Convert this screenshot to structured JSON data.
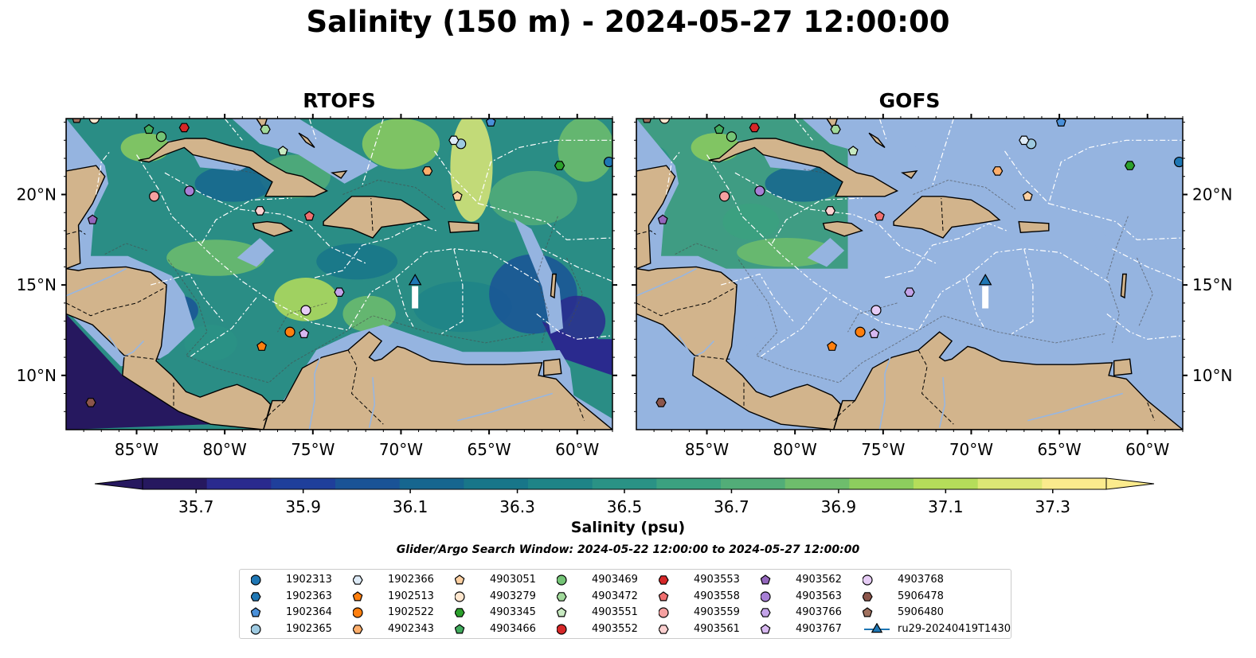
{
  "title": "Salinity (150 m) - 2024-05-27 12:00:00",
  "panels": [
    {
      "title": "RTOFS"
    },
    {
      "title": "GOFS"
    }
  ],
  "axes": {
    "lon_ticks": [
      "85°W",
      "80°W",
      "75°W",
      "70°W",
      "65°W",
      "60°W"
    ],
    "lat_ticks": [
      "20°N",
      "15°N",
      "10°N"
    ],
    "lon_range": [
      -89,
      -58
    ],
    "lat_range": [
      7,
      24.2
    ]
  },
  "colorbar": {
    "label": "Salinity (psu)",
    "ticks": [
      "35.7",
      "35.9",
      "36.1",
      "36.3",
      "36.5",
      "36.7",
      "36.9",
      "37.1",
      "37.3"
    ],
    "range": [
      35.6,
      37.4
    ],
    "colors": [
      "#26185f",
      "#2a2a8e",
      "#1f3f9b",
      "#1a5396",
      "#16668f",
      "#187689",
      "#1e8487",
      "#2a9285",
      "#3ba180",
      "#52ad78",
      "#6ebd6c",
      "#8dcd5e",
      "#b5dd5a",
      "#dde775",
      "#fbeb8d"
    ]
  },
  "window_text": "Glider/Argo Search Window: 2024-05-22 12:00:00 to 2024-05-27 12:00:00",
  "colors": {
    "land": "#d2b48c",
    "shelf": "#95b4e0",
    "ocean_rtofs": "#2a8d85",
    "ocean_gofs_nodata": "#95b4e0",
    "gofs_data_box": "#3f9c83"
  },
  "floats": [
    {
      "id": "1902313",
      "marker": "circle",
      "color": "#1f77b4",
      "lon": -58.2,
      "lat": 21.8
    },
    {
      "id": "1902363",
      "marker": "hexagon",
      "color": "#1f77b4",
      "lon": -89.5,
      "lat": 24.5
    },
    {
      "id": "1902364",
      "marker": "pentagon",
      "color": "#4a90d9",
      "lon": -64.9,
      "lat": 24.0
    },
    {
      "id": "1902365",
      "marker": "circle",
      "color": "#9ecae1",
      "lon": -66.6,
      "lat": 22.8
    },
    {
      "id": "1902366",
      "marker": "hexagon",
      "color": "#deebf7",
      "lon": -67.0,
      "lat": 23.0
    },
    {
      "id": "1902513",
      "marker": "pentagon",
      "color": "#ff7f0e",
      "lon": -77.9,
      "lat": 11.6
    },
    {
      "id": "1902522",
      "marker": "circle",
      "color": "#ff7f0e",
      "lon": -76.3,
      "lat": 12.4
    },
    {
      "id": "4902343",
      "marker": "hexagon",
      "color": "#fdae6b",
      "lon": -68.5,
      "lat": 21.3
    },
    {
      "id": "4903051",
      "marker": "pentagon",
      "color": "#fdd0a2",
      "lon": -66.8,
      "lat": 19.9
    },
    {
      "id": "4903279",
      "marker": "circle",
      "color": "#fee6ce",
      "lon": -87.4,
      "lat": 24.2
    },
    {
      "id": "4903345",
      "marker": "hexagon",
      "color": "#2ca02c",
      "lon": -61.0,
      "lat": 21.6
    },
    {
      "id": "4903466",
      "marker": "pentagon",
      "color": "#41ab5d",
      "lon": -84.3,
      "lat": 23.6
    },
    {
      "id": "4903469",
      "marker": "circle",
      "color": "#74c476",
      "lon": -83.6,
      "lat": 23.2
    },
    {
      "id": "4903472",
      "marker": "hexagon",
      "color": "#a1d99b",
      "lon": -77.7,
      "lat": 23.6
    },
    {
      "id": "4903551",
      "marker": "pentagon",
      "color": "#c7e9c0",
      "lon": -76.7,
      "lat": 22.4
    },
    {
      "id": "4903552",
      "marker": "circle",
      "color": "#d62728",
      "lon": -85.2,
      "lat": 24.5
    },
    {
      "id": "4903553",
      "marker": "hexagon",
      "color": "#d62728",
      "lon": -82.3,
      "lat": 23.7
    },
    {
      "id": "4903558",
      "marker": "pentagon",
      "color": "#f06f6f",
      "lon": -75.2,
      "lat": 18.8
    },
    {
      "id": "4903559",
      "marker": "circle",
      "color": "#f5a0a0",
      "lon": -84.0,
      "lat": 19.9
    },
    {
      "id": "4903561",
      "marker": "hexagon",
      "color": "#fcd0d0",
      "lon": -78.0,
      "lat": 19.1
    },
    {
      "id": "4903562",
      "marker": "pentagon",
      "color": "#9467bd",
      "lon": -87.5,
      "lat": 18.6
    },
    {
      "id": "4903563",
      "marker": "circle",
      "color": "#a77fd6",
      "lon": -82.0,
      "lat": 20.2
    },
    {
      "id": "4903766",
      "marker": "hexagon",
      "color": "#c3a3e8",
      "lon": -73.5,
      "lat": 14.6
    },
    {
      "id": "4903767",
      "marker": "pentagon",
      "color": "#d7b8f0",
      "lon": -75.5,
      "lat": 12.3
    },
    {
      "id": "4903768",
      "marker": "circle",
      "color": "#e6ccf5",
      "lon": -75.4,
      "lat": 13.6
    },
    {
      "id": "5906478",
      "marker": "hexagon",
      "color": "#8c564b",
      "lon": -87.6,
      "lat": 8.5
    },
    {
      "id": "5906480",
      "marker": "pentagon",
      "color": "#a0715e",
      "lon": -88.4,
      "lat": 24.2
    }
  ],
  "glider": {
    "id": "ru29-20240419T1430",
    "marker": "triangle",
    "color": "#1f77b4",
    "lon": -69.2,
    "lat": 15.2
  }
}
